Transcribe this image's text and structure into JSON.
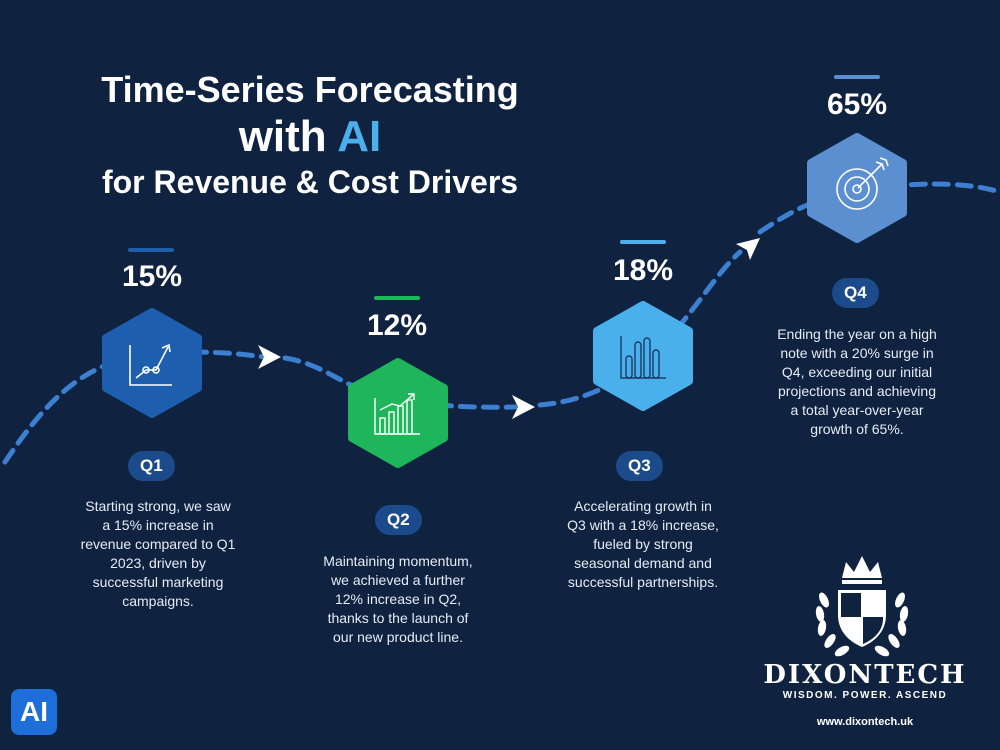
{
  "title": {
    "line1": "Time-Series Forecasting",
    "line2_prefix": "with ",
    "line2_accent": "AI",
    "line3": "for Revenue & Cost Drivers"
  },
  "colors": {
    "background": "#0f2240",
    "q1": "#1d5fae",
    "q2": "#1fb55a",
    "q3": "#4ab0ec",
    "q4": "#5b8fd0",
    "path": "#3d7fd0",
    "badge": "#1c4b8c"
  },
  "stages": [
    {
      "quarter": "Q1",
      "percent": "15%",
      "icon": "line-graph-icon",
      "description": [
        "Starting strong, we saw",
        "a 15% increase in",
        "revenue compared to Q1",
        "2023, driven by",
        "successful marketing",
        "campaigns."
      ]
    },
    {
      "quarter": "Q2",
      "percent": "12%",
      "icon": "bar-growth-icon",
      "description": [
        "Maintaining momentum,",
        "we achieved a further",
        "12% increase in Q2,",
        "thanks to the launch of",
        "our new product line."
      ]
    },
    {
      "quarter": "Q3",
      "percent": "18%",
      "icon": "bar-chart-icon",
      "description": [
        "Accelerating growth in",
        "Q3 with a 18% increase,",
        "fueled by strong",
        "seasonal demand and",
        "successful partnerships."
      ]
    },
    {
      "quarter": "Q4",
      "percent": "65%",
      "icon": "target-icon",
      "description": [
        "Ending the year on a high",
        "note with a 20% surge in",
        "Q4, exceeding our initial",
        "projections and achieving",
        "a total year-over-year",
        "growth of 65%."
      ]
    }
  ],
  "brand": {
    "name": "DIXONTECH",
    "tagline": "WISDOM. POWER. ASCEND",
    "website": "www.dixontech.uk",
    "ai_badge": "AI"
  }
}
